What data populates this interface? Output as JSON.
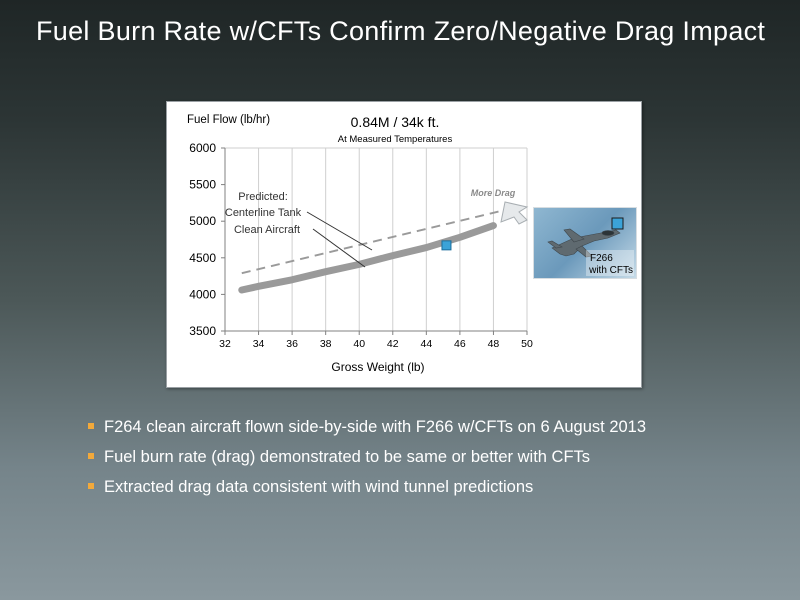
{
  "slide": {
    "title": "Fuel Burn Rate w/CFTs Confirm Zero/Negative Drag Impact",
    "bullet_color": "#f2a93b",
    "bullets": [
      "F264 clean aircraft flown side-by-side with F266 w/CFTs on 6 August 2013",
      "Fuel burn rate (drag) demonstrated to be same or better with CFTs",
      "Extracted drag data consistent with wind tunnel predictions"
    ]
  },
  "inset": {
    "label_line1": "F266",
    "label_line2": "with CFTs",
    "marker_color": "#3ba3d8"
  },
  "chart_data": {
    "type": "line",
    "title": "0.84M / 34k ft.",
    "subtitle": "At Measured Temperatures",
    "ylabel": "Fuel Flow (lb/hr)",
    "xlabel": "Gross Weight (lb)",
    "xlim": [
      32,
      50
    ],
    "ylim": [
      3500,
      6000
    ],
    "xticks": [
      32,
      34,
      36,
      38,
      40,
      42,
      44,
      46,
      48,
      50
    ],
    "yticks": [
      3500,
      4000,
      4500,
      5000,
      5500,
      6000
    ],
    "grid": "vertical",
    "series": [
      {
        "name": "Centerline Tank",
        "style": "dashed",
        "color": "#9a9a9a",
        "x": [
          33,
          49
        ],
        "y": [
          4290,
          5170
        ]
      },
      {
        "name": "Clean Aircraft",
        "style": "thick",
        "color": "#9a9a9a",
        "x": [
          33,
          34,
          36,
          38,
          40,
          42,
          44,
          46,
          48
        ],
        "y": [
          4060,
          4110,
          4200,
          4310,
          4410,
          4530,
          4640,
          4780,
          4940
        ]
      }
    ],
    "markers": [
      {
        "name": "F266 with CFTs",
        "x": 45.2,
        "y": 4670,
        "color": "#3ba3d8"
      }
    ],
    "annotations": {
      "predicted_title": "Predicted:",
      "predicted_line1": "Centerline Tank",
      "predicted_line2": "Clean Aircraft",
      "more_drag": "More Drag"
    }
  }
}
